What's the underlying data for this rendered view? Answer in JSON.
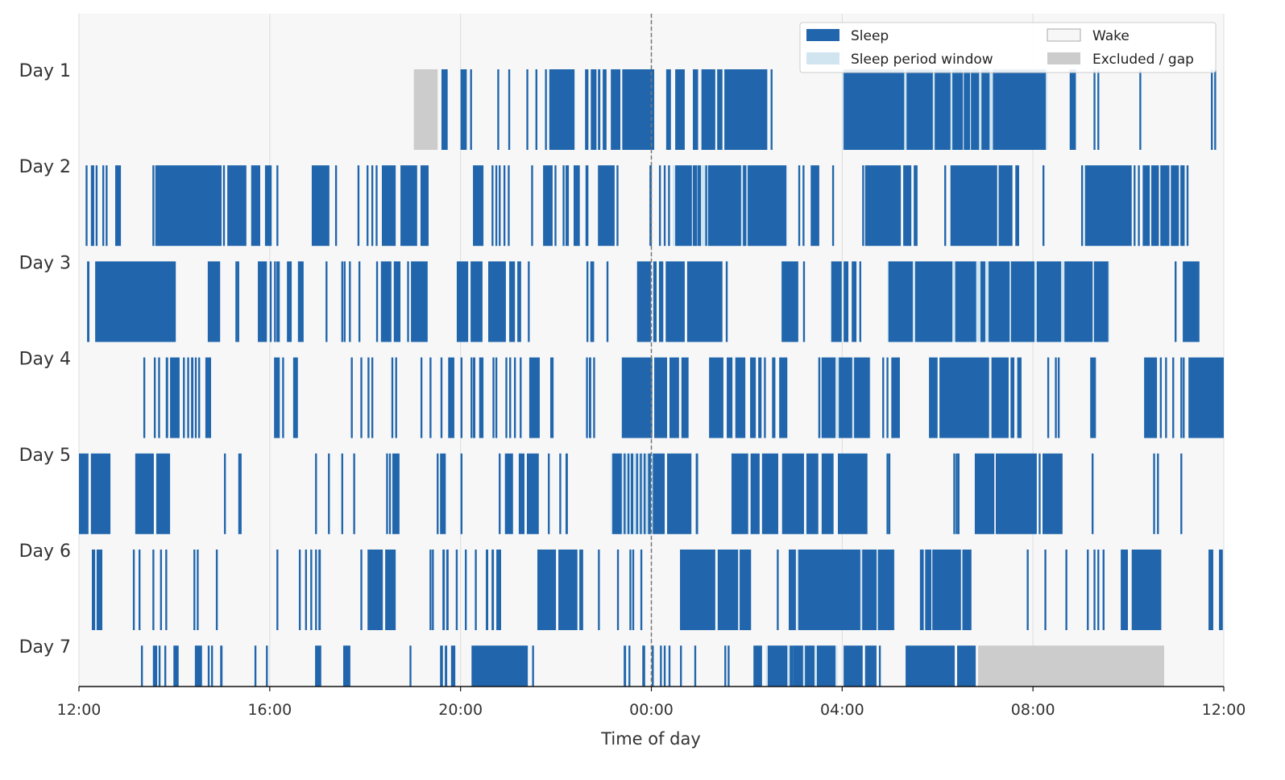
{
  "chart_data": {
    "type": "actogram",
    "xlabel": "Time of day",
    "x_range_hours_from_noon": [
      0,
      24
    ],
    "x_ticks": [
      {
        "h": 0,
        "label": "12:00"
      },
      {
        "h": 4,
        "label": "16:00"
      },
      {
        "h": 8,
        "label": "20:00"
      },
      {
        "h": 12,
        "label": "00:00"
      },
      {
        "h": 16,
        "label": "04:00"
      },
      {
        "h": 20,
        "label": "08:00"
      },
      {
        "h": 24,
        "label": "12:00"
      }
    ],
    "midnight_marker_h": 12,
    "grid": "vertical",
    "brief_bout_duration_h": 0.04,
    "colors": {
      "sleep": "#2166ac",
      "window": "#d1e5f0",
      "wake": "#f7f7f7",
      "excluded": "#cccccc",
      "midnight": "#777777"
    },
    "legend": {
      "placement": "top-right",
      "items": [
        {
          "key": "sleep",
          "label": "Sleep"
        },
        {
          "key": "window",
          "label": "Sleep period window"
        },
        {
          "key": "wake",
          "label": "Wake"
        },
        {
          "key": "excluded",
          "label": "Excluded / gap"
        }
      ]
    },
    "days": [
      {
        "label": "Day 1",
        "window": [
          [
            16.0,
            20.3
          ]
        ],
        "excluded": [
          [
            7.02,
            7.52
          ]
        ],
        "sleep": [
          [
            7.6,
            7.73
          ],
          [
            8.0,
            8.13
          ],
          8.2,
          8.77,
          9.0,
          9.38,
          9.57,
          9.77,
          [
            9.86,
            10.39
          ],
          [
            10.61,
            10.68
          ],
          [
            10.73,
            10.85
          ],
          [
            10.88,
            10.93
          ],
          [
            10.98,
            11.06
          ],
          [
            11.15,
            11.35
          ],
          [
            11.39,
            12.06
          ],
          [
            12.31,
            12.41
          ],
          [
            12.5,
            12.7
          ],
          [
            12.87,
            12.98
          ],
          [
            13.05,
            13.34
          ],
          [
            13.38,
            13.49
          ],
          [
            13.53,
            14.43
          ],
          14.5,
          [
            16.03,
            17.3
          ],
          [
            17.35,
            17.9
          ],
          [
            17.94,
            18.27
          ],
          [
            18.31,
            18.53
          ],
          [
            18.55,
            18.68
          ],
          [
            18.7,
            18.87
          ],
          [
            18.92,
            19.09
          ],
          [
            19.16,
            20.27
          ],
          [
            20.77,
            20.9
          ],
          21.27,
          21.35,
          22.23,
          23.73,
          23.8
        ]
      },
      {
        "label": "Day 2",
        "window": [
          [
            12.45,
            14.85
          ]
        ],
        "excluded": [],
        "sleep": [
          0.14,
          [
            0.25,
            0.32
          ],
          0.35,
          0.49,
          0.56,
          [
            0.76,
            0.88
          ],
          1.54,
          [
            1.6,
            2.99
          ],
          3.02,
          [
            3.11,
            3.51
          ],
          [
            3.61,
            3.8
          ],
          [
            3.9,
            4.04
          ],
          4.14,
          [
            4.88,
            5.25
          ],
          5.37,
          5.84,
          6.03,
          6.13,
          6.22,
          [
            6.35,
            6.64
          ],
          [
            6.74,
            7.09
          ],
          [
            7.16,
            7.33
          ],
          [
            8.26,
            8.48
          ],
          8.65,
          8.73,
          8.8,
          8.9,
          8.99,
          9.48,
          [
            9.73,
            9.93
          ],
          9.97,
          10.14,
          [
            10.2,
            10.27
          ],
          [
            10.37,
            10.5
          ],
          [
            10.62,
            10.68
          ],
          [
            10.88,
            11.23
          ],
          11.27,
          [
            11.96,
            12.01
          ],
          12.16,
          12.26,
          12.35,
          [
            12.5,
            12.85
          ],
          [
            12.87,
            12.96
          ],
          [
            12.97,
            13.04
          ],
          13.13,
          [
            13.19,
            13.88
          ],
          [
            13.92,
            13.99
          ],
          [
            14.02,
            14.83
          ],
          15.08,
          15.17,
          [
            15.34,
            15.52
          ],
          15.79,
          16.42,
          [
            16.48,
            17.23
          ],
          [
            17.28,
            17.45
          ],
          [
            17.5,
            17.58
          ],
          18.14,
          [
            18.27,
            19.25
          ],
          [
            19.28,
            19.57
          ],
          [
            19.63,
            19.71
          ],
          20.2,
          21.01,
          [
            21.09,
            22.07
          ],
          22.11,
          22.2,
          [
            22.3,
            22.45
          ],
          [
            22.48,
            22.64
          ],
          [
            22.67,
            22.86
          ],
          [
            22.89,
            23.06
          ],
          [
            23.09,
            23.18
          ],
          23.22
        ]
      },
      {
        "label": "Day 3",
        "window": [
          [
            16.95,
            21.6
          ]
        ],
        "excluded": [],
        "sleep": [
          [
            0.17,
            0.22
          ],
          [
            0.34,
            2.03
          ],
          [
            2.7,
            2.96
          ],
          3.28,
          3.32,
          [
            3.75,
            3.94
          ],
          4.0,
          4.09,
          [
            4.14,
            4.21
          ],
          [
            4.36,
            4.46
          ],
          [
            4.59,
            4.71
          ],
          5.17,
          5.5,
          5.55,
          5.66,
          5.86,
          6.23,
          [
            6.33,
            6.55
          ],
          [
            6.6,
            6.74
          ],
          6.88,
          [
            6.96,
            7.31
          ],
          [
            7.92,
            8.16
          ],
          [
            8.21,
            8.46
          ],
          [
            8.58,
            8.95
          ],
          [
            9.02,
            9.14
          ],
          [
            9.19,
            9.27
          ],
          9.41,
          10.64,
          [
            10.72,
            10.8
          ],
          11.06,
          [
            11.7,
            11.99
          ],
          [
            12.04,
            12.11
          ],
          [
            12.16,
            12.25
          ],
          [
            12.3,
            12.7
          ],
          [
            12.75,
            13.49
          ],
          13.56,
          [
            14.73,
            15.08
          ],
          15.18,
          [
            15.77,
            15.99
          ],
          [
            16.03,
            16.13
          ],
          [
            16.2,
            16.3
          ],
          16.36,
          [
            16.97,
            17.48
          ],
          [
            17.53,
            18.31
          ],
          [
            18.37,
            18.81
          ],
          [
            18.9,
            19.0
          ],
          [
            19.07,
            19.51
          ],
          [
            19.54,
            20.03
          ],
          [
            20.08,
            20.59
          ],
          [
            20.66,
            21.25
          ],
          [
            21.28,
            21.58
          ],
          22.97,
          [
            23.14,
            23.49
          ]
        ]
      },
      {
        "label": "Day 4",
        "window": [
          [
            15.5,
            16.6
          ]
        ],
        "excluded": [],
        "sleep": [
          1.35,
          1.57,
          1.66,
          [
            1.82,
            1.87
          ],
          [
            1.91,
            2.11
          ],
          2.18,
          2.27,
          [
            2.35,
            2.4
          ],
          2.43,
          2.5,
          [
            2.65,
            2.77
          ],
          [
            4.09,
            4.21
          ],
          4.26,
          [
            4.49,
            4.59
          ],
          5.7,
          5.9,
          6.05,
          6.13,
          6.55,
          6.63,
          7.16,
          7.35,
          7.58,
          [
            7.74,
            7.87
          ],
          8.0,
          8.21,
          [
            8.26,
            8.31
          ],
          [
            8.39,
            8.48
          ],
          8.67,
          8.73,
          8.94,
          9.02,
          9.12,
          9.24,
          [
            9.44,
            9.66
          ],
          [
            9.88,
            9.95
          ],
          10.63,
          [
            10.69,
            10.74
          ],
          10.78,
          [
            11.38,
            12.02
          ],
          [
            12.06,
            12.33
          ],
          [
            12.38,
            12.58
          ],
          [
            12.63,
            12.78
          ],
          [
            13.21,
            13.51
          ],
          [
            13.58,
            13.7
          ],
          [
            13.76,
            13.97
          ],
          [
            14.07,
            14.19
          ],
          [
            14.24,
            14.31
          ],
          14.36,
          [
            14.53,
            14.6
          ],
          [
            14.68,
            14.85
          ],
          15.5,
          [
            15.57,
            15.86
          ],
          [
            15.93,
            16.21
          ],
          [
            16.25,
            16.58
          ],
          16.84,
          16.93,
          [
            17.03,
            17.21
          ],
          [
            17.82,
            18.0
          ],
          [
            18.04,
            19.08
          ],
          [
            19.13,
            19.49
          ],
          [
            19.53,
            19.61
          ],
          [
            19.67,
            19.76
          ],
          20.3,
          20.46,
          20.52,
          [
            21.2,
            21.32
          ],
          [
            22.33,
            22.6
          ],
          22.66,
          22.77,
          22.92,
          23.09,
          23.14,
          [
            23.26,
            24
          ]
        ]
      },
      {
        "label": "Day 5",
        "window": [
          [
            11.15,
            12.05
          ]
        ],
        "excluded": [],
        "sleep": [
          [
            0,
            0.2
          ],
          [
            0.25,
            0.66
          ],
          [
            1.18,
            1.57
          ],
          [
            1.62,
            1.91
          ],
          3.04,
          [
            3.34,
            3.41
          ],
          4.95,
          5.22,
          5.5,
          5.75,
          6.44,
          6.5,
          [
            6.57,
            6.72
          ],
          7.5,
          [
            7.57,
            7.69
          ],
          8.0,
          8.8,
          [
            8.93,
            9.1
          ],
          [
            9.22,
            9.34
          ],
          [
            9.39,
            9.64
          ],
          9.83,
          10.07,
          [
            10.2,
            10.25
          ],
          [
            11.18,
            11.38
          ],
          11.42,
          11.5,
          [
            11.57,
            11.62
          ],
          11.68,
          11.76,
          11.84,
          [
            11.93,
            11.99
          ],
          [
            12.03,
            12.28
          ],
          [
            12.33,
            12.84
          ],
          [
            12.93,
            12.98
          ],
          [
            13.68,
            14.03
          ],
          [
            14.08,
            14.27
          ],
          [
            14.32,
            14.66
          ],
          [
            14.74,
            15.2
          ],
          [
            15.25,
            15.5
          ],
          [
            15.57,
            15.82
          ],
          [
            15.91,
            16.53
          ],
          16.93,
          16.97,
          18.33,
          18.38,
          18.42,
          [
            18.78,
            19.19
          ],
          [
            19.22,
            20.08
          ],
          20.12,
          [
            20.2,
            20.62
          ],
          21.23,
          22.52,
          22.6,
          23.09
        ]
      },
      {
        "label": "Day 6",
        "window": [
          [
            15.05,
            17.1
          ]
        ],
        "excluded": [],
        "sleep": [
          [
            0.27,
            0.34
          ],
          [
            0.37,
            0.49
          ],
          1.13,
          1.25,
          1.54,
          1.7,
          1.81,
          2.4,
          2.47,
          2.87,
          4.14,
          4.61,
          4.74,
          4.85,
          4.95,
          [
            5.02,
            5.07
          ],
          5.9,
          [
            6.05,
            6.37
          ],
          [
            6.42,
            6.64
          ],
          7.35,
          7.4,
          [
            7.62,
            7.67
          ],
          [
            7.7,
            7.75
          ],
          7.9,
          8.09,
          8.3,
          [
            8.53,
            8.58
          ],
          [
            8.65,
            8.7
          ],
          [
            8.75,
            8.85
          ],
          [
            9.61,
            10.0
          ],
          [
            10.05,
            10.45
          ],
          [
            10.49,
            10.57
          ],
          10.88,
          11.28,
          11.54,
          11.6,
          11.77,
          [
            12.6,
            13.34
          ],
          [
            13.39,
            13.82
          ],
          [
            13.85,
            14.09
          ],
          14.63,
          [
            14.88,
            15.03
          ],
          [
            15.08,
            16.38
          ],
          [
            16.42,
            16.72
          ],
          [
            16.75,
            17.09
          ],
          [
            17.63,
            17.71
          ],
          [
            17.74,
            17.87
          ],
          [
            17.89,
            18.49
          ],
          [
            18.52,
            18.71
          ],
          19.87,
          20.24,
          20.68,
          21.13,
          21.27,
          21.35,
          21.46,
          [
            21.84,
            21.99
          ],
          22.07,
          [
            22.09,
            22.69
          ],
          [
            23.68,
            23.78
          ],
          [
            23.9,
            23.98
          ]
        ]
      },
      {
        "label": "Day 7",
        "window": [
          [
            14.4,
            15.9
          ]
        ],
        "excluded": [
          [
            18.85,
            22.75
          ]
        ],
        "sleep": [
          1.3,
          [
            1.55,
            1.64
          ],
          1.67,
          1.79,
          [
            1.98,
            2.09
          ],
          [
            2.43,
            2.58
          ],
          2.7,
          2.77,
          [
            2.96,
            3.01
          ],
          3.68,
          3.92,
          [
            4.95,
            5.08
          ],
          [
            5.54,
            5.69
          ],
          6.93,
          [
            7.57,
            7.63
          ],
          [
            7.67,
            7.72
          ],
          [
            7.8,
            7.89
          ],
          [
            8.23,
            9.41
          ],
          9.5,
          [
            11.42,
            11.47
          ],
          11.52,
          [
            11.81,
            11.87
          ],
          12.01,
          12.18,
          12.26,
          12.36,
          12.6,
          12.9,
          13.53,
          13.6,
          [
            14.14,
            14.32
          ],
          [
            14.44,
            14.85
          ],
          [
            14.9,
            14.97
          ],
          [
            14.97,
            15.18
          ],
          [
            15.22,
            15.42
          ],
          [
            15.47,
            15.86
          ],
          [
            16.03,
            16.43
          ],
          [
            16.48,
            16.72
          ],
          16.77,
          [
            17.33,
            18.36
          ],
          [
            18.41,
            18.8
          ]
        ]
      }
    ]
  }
}
